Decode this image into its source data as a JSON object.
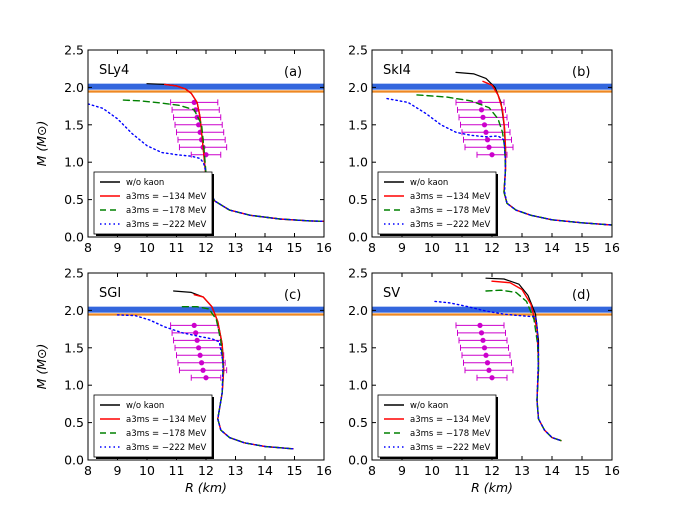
{
  "figure": {
    "ylabel": "M (M⊙)",
    "xlabel": "R (km)"
  },
  "legend": {
    "entries": [
      {
        "label": "w/o kaon",
        "color": "#000000",
        "style": "solid"
      },
      {
        "label": "a3ms = −134 MeV",
        "color": "#ff0000",
        "style": "solid"
      },
      {
        "label": "a3ms = −178 MeV",
        "color": "#008000",
        "style": "dashed"
      },
      {
        "label": "a3ms = −222 MeV",
        "color": "#0000ff",
        "style": "dotted"
      }
    ]
  },
  "bands": [
    {
      "color": "#3366dd",
      "y_range": [
        1.97,
        2.05
      ]
    },
    {
      "color": "#ee8822",
      "y_range": [
        1.93,
        1.96
      ]
    }
  ],
  "chart_data": [
    {
      "type": "line",
      "name": "SLy4",
      "tag": "(a)",
      "xlim": [
        8,
        16
      ],
      "ylim": [
        0,
        2.5
      ],
      "xticks": [
        "8",
        "9",
        "10",
        "11",
        "12",
        "13",
        "14",
        "15",
        "16"
      ],
      "yticks": [
        "0.0",
        "0.5",
        "1.0",
        "1.5",
        "2.0",
        "2.5"
      ],
      "series": [
        {
          "name": "w/o kaon",
          "color": "#000000",
          "dash": "",
          "x": [
            10.0,
            10.6,
            11.0,
            11.3,
            11.5,
            11.7,
            11.8,
            11.85,
            11.9,
            11.95,
            12.0,
            12.1,
            12.3,
            12.8,
            13.5,
            14.5,
            15.5,
            16.0
          ],
          "y": [
            2.05,
            2.04,
            2.02,
            1.98,
            1.92,
            1.8,
            1.6,
            1.4,
            1.2,
            1.0,
            0.8,
            0.6,
            0.48,
            0.36,
            0.29,
            0.24,
            0.215,
            0.21
          ]
        },
        {
          "name": "−134",
          "color": "#ff0000",
          "dash": "",
          "x": [
            10.6,
            11.0,
            11.3,
            11.5,
            11.7,
            11.8,
            11.85,
            11.9,
            11.95,
            12.0,
            12.1,
            12.3,
            12.8,
            13.5,
            14.5,
            15.5,
            16.0
          ],
          "y": [
            2.04,
            2.02,
            1.98,
            1.92,
            1.8,
            1.6,
            1.4,
            1.2,
            1.0,
            0.8,
            0.6,
            0.48,
            0.36,
            0.29,
            0.24,
            0.215,
            0.21
          ]
        },
        {
          "name": "−178",
          "color": "#008000",
          "dash": "6,4",
          "x": [
            9.2,
            9.8,
            10.5,
            11.1,
            11.6,
            11.85,
            11.9,
            11.95,
            12.0,
            12.1,
            12.3,
            12.8,
            13.5,
            14.5,
            15.5,
            16.0
          ],
          "y": [
            1.83,
            1.82,
            1.79,
            1.76,
            1.7,
            1.5,
            1.3,
            1.1,
            0.85,
            0.62,
            0.48,
            0.36,
            0.29,
            0.24,
            0.215,
            0.21
          ]
        },
        {
          "name": "−222",
          "color": "#0000ff",
          "dash": "1.5,3",
          "x": [
            8.0,
            8.5,
            9.0,
            9.5,
            10.0,
            10.5,
            11.0,
            11.5,
            11.8,
            11.9,
            11.95,
            12.0,
            12.1,
            12.3,
            12.8,
            13.5,
            14.5,
            15.5,
            16.0
          ],
          "y": [
            1.78,
            1.72,
            1.58,
            1.38,
            1.22,
            1.13,
            1.1,
            1.08,
            1.05,
            1.0,
            0.95,
            0.85,
            0.62,
            0.48,
            0.36,
            0.29,
            0.24,
            0.215,
            0.21
          ]
        }
      ],
      "errorbars": {
        "x": [
          11.6,
          11.65,
          11.7,
          11.75,
          11.8,
          11.85,
          11.9,
          12.0
        ],
        "y": [
          1.8,
          1.7,
          1.6,
          1.5,
          1.4,
          1.3,
          1.2,
          1.1
        ],
        "xerr": [
          0.8,
          0.8,
          0.8,
          0.8,
          0.8,
          0.8,
          0.8,
          0.5
        ]
      }
    },
    {
      "type": "line",
      "name": "SkI4",
      "tag": "(b)",
      "xlim": [
        8,
        16
      ],
      "ylim": [
        0,
        2.5
      ],
      "xticks": [
        "8",
        "9",
        "10",
        "11",
        "12",
        "13",
        "14",
        "15",
        "16"
      ],
      "yticks": [
        "0.0",
        "0.5",
        "1.0",
        "1.5",
        "2.0",
        "2.5"
      ],
      "series": [
        {
          "name": "w/o kaon",
          "color": "#000000",
          "dash": "",
          "x": [
            10.8,
            11.4,
            11.8,
            12.1,
            12.3,
            12.4,
            12.45,
            12.45,
            12.4,
            12.5,
            12.8,
            13.3,
            14.0,
            15.0,
            16.0
          ],
          "y": [
            2.2,
            2.18,
            2.12,
            2.0,
            1.8,
            1.5,
            1.2,
            0.9,
            0.6,
            0.45,
            0.36,
            0.29,
            0.23,
            0.19,
            0.16
          ]
        },
        {
          "name": "−134",
          "color": "#ff0000",
          "dash": "",
          "x": [
            11.7,
            12.0,
            12.2,
            12.35,
            12.42,
            12.45,
            12.45,
            12.4,
            12.5,
            12.8,
            13.3,
            14.0,
            15.0,
            16.0
          ],
          "y": [
            2.08,
            2.03,
            1.9,
            1.7,
            1.45,
            1.2,
            0.9,
            0.6,
            0.45,
            0.36,
            0.29,
            0.23,
            0.19,
            0.16
          ]
        },
        {
          "name": "−178",
          "color": "#008000",
          "dash": "6,4",
          "x": [
            9.5,
            10.5,
            11.3,
            11.9,
            12.2,
            12.35,
            12.42,
            12.45,
            12.4,
            12.5,
            12.8,
            13.3,
            14.0,
            15.0,
            16.0
          ],
          "y": [
            1.9,
            1.87,
            1.82,
            1.73,
            1.58,
            1.4,
            1.2,
            0.9,
            0.6,
            0.45,
            0.36,
            0.29,
            0.23,
            0.19,
            0.16
          ]
        },
        {
          "name": "−222",
          "color": "#0000ff",
          "dash": "1.5,3",
          "x": [
            8.5,
            9.2,
            9.8,
            10.3,
            10.8,
            11.3,
            11.8,
            12.2,
            12.4,
            12.45,
            12.42,
            12.5,
            12.8,
            13.3,
            14.0,
            15.0,
            16.0
          ],
          "y": [
            1.85,
            1.8,
            1.65,
            1.5,
            1.4,
            1.36,
            1.34,
            1.35,
            1.3,
            1.0,
            0.6,
            0.45,
            0.36,
            0.29,
            0.23,
            0.19,
            0.16
          ]
        }
      ],
      "errorbars": {
        "x": [
          11.6,
          11.65,
          11.7,
          11.75,
          11.8,
          11.85,
          11.9,
          12.0
        ],
        "y": [
          1.8,
          1.7,
          1.6,
          1.5,
          1.4,
          1.3,
          1.2,
          1.1
        ],
        "xerr": [
          0.8,
          0.8,
          0.8,
          0.8,
          0.8,
          0.8,
          0.8,
          0.5
        ]
      }
    },
    {
      "type": "line",
      "name": "SGI",
      "tag": "(c)",
      "xlim": [
        8,
        16
      ],
      "ylim": [
        0,
        2.5
      ],
      "xticks": [
        "8",
        "9",
        "10",
        "11",
        "12",
        "13",
        "14",
        "15",
        "16"
      ],
      "yticks": [
        "0.0",
        "0.5",
        "1.0",
        "1.5",
        "2.0",
        "2.5"
      ],
      "series": [
        {
          "name": "w/o kaon",
          "color": "#000000",
          "dash": "",
          "x": [
            10.9,
            11.5,
            11.9,
            12.2,
            12.4,
            12.55,
            12.6,
            12.55,
            12.4,
            12.5,
            12.8,
            13.3,
            14.0,
            14.95
          ],
          "y": [
            2.26,
            2.24,
            2.18,
            2.05,
            1.85,
            1.55,
            1.2,
            0.9,
            0.55,
            0.4,
            0.3,
            0.23,
            0.18,
            0.15
          ]
        },
        {
          "name": "−134",
          "color": "#ff0000",
          "dash": "",
          "x": [
            11.6,
            11.9,
            12.2,
            12.4,
            12.55,
            12.6,
            12.55,
            12.4,
            12.5,
            12.8,
            13.3,
            14.0,
            14.95
          ],
          "y": [
            2.21,
            2.18,
            2.05,
            1.85,
            1.55,
            1.2,
            0.9,
            0.55,
            0.4,
            0.3,
            0.23,
            0.18,
            0.15
          ]
        },
        {
          "name": "−178",
          "color": "#008000",
          "dash": "6,4",
          "x": [
            11.2,
            11.7,
            12.1,
            12.35,
            12.5,
            12.58,
            12.55,
            12.4,
            12.5,
            12.8,
            13.3,
            14.0,
            14.95
          ],
          "y": [
            2.05,
            2.05,
            2.02,
            1.88,
            1.6,
            1.25,
            0.9,
            0.55,
            0.4,
            0.3,
            0.23,
            0.18,
            0.15
          ]
        },
        {
          "name": "−222",
          "color": "#0000ff",
          "dash": "1.5,3",
          "x": [
            9.0,
            9.6,
            10.1,
            10.6,
            11.2,
            11.8,
            12.2,
            12.45,
            12.58,
            12.55,
            12.4,
            12.5,
            12.8,
            13.3,
            14.0,
            14.95
          ],
          "y": [
            1.94,
            1.93,
            1.87,
            1.78,
            1.7,
            1.65,
            1.62,
            1.58,
            1.3,
            0.9,
            0.55,
            0.4,
            0.3,
            0.23,
            0.18,
            0.15
          ]
        }
      ],
      "errorbars": {
        "x": [
          11.6,
          11.65,
          11.7,
          11.75,
          11.8,
          11.85,
          11.9,
          12.0
        ],
        "y": [
          1.8,
          1.7,
          1.6,
          1.5,
          1.4,
          1.3,
          1.2,
          1.1
        ],
        "xerr": [
          0.8,
          0.8,
          0.8,
          0.8,
          0.8,
          0.8,
          0.8,
          0.5
        ]
      }
    },
    {
      "type": "line",
      "name": "SV",
      "tag": "(d)",
      "xlim": [
        8,
        16
      ],
      "ylim": [
        0,
        2.5
      ],
      "xticks": [
        "8",
        "9",
        "10",
        "11",
        "12",
        "13",
        "14",
        "15",
        "16"
      ],
      "yticks": [
        "0.0",
        "0.5",
        "1.0",
        "1.5",
        "2.0",
        "2.5"
      ],
      "series": [
        {
          "name": "w/o kaon",
          "color": "#000000",
          "dash": "",
          "x": [
            11.8,
            12.4,
            12.9,
            13.2,
            13.45,
            13.55,
            13.55,
            13.5,
            13.55,
            13.75,
            14.0,
            14.3
          ],
          "y": [
            2.43,
            2.42,
            2.35,
            2.2,
            1.95,
            1.6,
            1.2,
            0.8,
            0.55,
            0.4,
            0.3,
            0.26
          ]
        },
        {
          "name": "−134",
          "color": "#ff0000",
          "dash": "",
          "x": [
            12.0,
            12.6,
            13.0,
            13.3,
            13.5,
            13.55,
            13.5,
            13.55,
            13.75,
            14.0,
            14.3
          ],
          "y": [
            2.39,
            2.37,
            2.28,
            2.08,
            1.75,
            1.3,
            0.8,
            0.55,
            0.4,
            0.3,
            0.26
          ]
        },
        {
          "name": "−178",
          "color": "#008000",
          "dash": "6,4",
          "x": [
            11.8,
            12.3,
            12.8,
            13.15,
            13.4,
            13.52,
            13.55,
            13.5,
            13.55,
            13.75,
            14.0,
            14.3
          ],
          "y": [
            2.26,
            2.27,
            2.24,
            2.12,
            1.88,
            1.55,
            1.2,
            0.8,
            0.55,
            0.4,
            0.3,
            0.26
          ]
        },
        {
          "name": "−222",
          "color": "#0000ff",
          "dash": "1.5,3",
          "x": [
            10.1,
            10.6,
            11.2,
            11.8,
            12.4,
            12.9,
            13.25,
            13.45,
            13.5,
            13.55,
            13.5,
            13.55,
            13.75,
            14.0,
            14.3
          ],
          "y": [
            2.12,
            2.1,
            2.05,
            1.99,
            1.95,
            1.93,
            1.92,
            1.92,
            1.8,
            1.4,
            0.8,
            0.55,
            0.4,
            0.3,
            0.26
          ]
        }
      ],
      "errorbars": {
        "x": [
          11.6,
          11.65,
          11.7,
          11.75,
          11.8,
          11.85,
          11.9,
          12.0
        ],
        "y": [
          1.8,
          1.7,
          1.6,
          1.5,
          1.4,
          1.3,
          1.2,
          1.1
        ],
        "xerr": [
          0.8,
          0.8,
          0.8,
          0.8,
          0.8,
          0.8,
          0.8,
          0.5
        ]
      }
    }
  ]
}
